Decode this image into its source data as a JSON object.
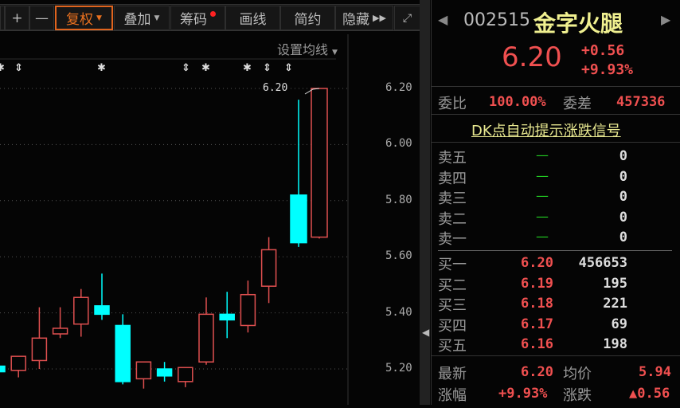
{
  "toolbar": {
    "plus": "+",
    "minus": "—",
    "fuquan": "复权",
    "diejia": "叠加",
    "chouma": "筹码",
    "huaxian": "画线",
    "jianyue": "简约",
    "yincang": "隐藏",
    "expand_icon": "fullscreen-icon"
  },
  "chart": {
    "ma_settings": "设置均线",
    "last_price_label": "6.20",
    "accent_up": "#e05050",
    "accent_down": "#00ffff",
    "markers": [
      "asterisk",
      "updown",
      "asterisk",
      "updown",
      "asterisk",
      "asterisk",
      "updown",
      "updown"
    ],
    "y_ticks": [
      "6.20",
      "6.00",
      "5.80",
      "5.60",
      "5.40",
      "5.20"
    ]
  },
  "chart_data": {
    "type": "candlestick",
    "ylim": [
      5.1,
      6.25
    ],
    "y_ticks": [
      6.2,
      6.0,
      5.8,
      5.6,
      5.4,
      5.2
    ],
    "grid": true,
    "candles": [
      {
        "o": 5.21,
        "c": 5.19,
        "h": 5.21,
        "l": 5.19
      },
      {
        "o": 5.195,
        "c": 5.245,
        "h": 5.245,
        "l": 5.17
      },
      {
        "o": 5.23,
        "c": 5.31,
        "h": 5.42,
        "l": 5.2
      },
      {
        "o": 5.325,
        "c": 5.345,
        "h": 5.42,
        "l": 5.31
      },
      {
        "o": 5.36,
        "c": 5.455,
        "h": 5.485,
        "l": 5.315
      },
      {
        "o": 5.425,
        "c": 5.395,
        "h": 5.54,
        "l": 5.375
      },
      {
        "o": 5.355,
        "c": 5.155,
        "h": 5.395,
        "l": 5.145
      },
      {
        "o": 5.165,
        "c": 5.225,
        "h": 5.225,
        "l": 5.13
      },
      {
        "o": 5.2,
        "c": 5.175,
        "h": 5.225,
        "l": 5.155
      },
      {
        "o": 5.155,
        "c": 5.205,
        "h": 5.205,
        "l": 5.135
      },
      {
        "o": 5.225,
        "c": 5.395,
        "h": 5.455,
        "l": 5.215
      },
      {
        "o": 5.395,
        "c": 5.375,
        "h": 5.475,
        "l": 5.31
      },
      {
        "o": 5.355,
        "c": 5.465,
        "h": 5.515,
        "l": 5.33
      },
      {
        "o": 5.495,
        "c": 5.625,
        "h": 5.67,
        "l": 5.435
      },
      {
        "o": 5.82,
        "c": 5.65,
        "h": 6.16,
        "l": 5.635
      },
      {
        "o": 5.67,
        "c": 6.2,
        "h": 6.2,
        "l": 5.665
      }
    ]
  },
  "quote": {
    "code": "002515",
    "name": "金字火腿",
    "price": "6.20",
    "change": "+0.56",
    "change_pct": "+9.93%",
    "weibi_label": "委比",
    "weibi": "100.00%",
    "weicha_label": "委差",
    "weicha": "457336",
    "dk_link": "DK点自动提示涨跌信号",
    "sells": [
      {
        "label": "卖五",
        "price": "—",
        "vol": "0"
      },
      {
        "label": "卖四",
        "price": "—",
        "vol": "0"
      },
      {
        "label": "卖三",
        "price": "—",
        "vol": "0"
      },
      {
        "label": "卖二",
        "price": "—",
        "vol": "0"
      },
      {
        "label": "卖一",
        "price": "—",
        "vol": "0"
      }
    ],
    "buys": [
      {
        "label": "买一",
        "price": "6.20",
        "vol": "456653"
      },
      {
        "label": "买二",
        "price": "6.19",
        "vol": "195"
      },
      {
        "label": "买三",
        "price": "6.18",
        "vol": "221"
      },
      {
        "label": "买四",
        "price": "6.17",
        "vol": "69"
      },
      {
        "label": "买五",
        "price": "6.16",
        "vol": "198"
      }
    ],
    "latest_label": "最新",
    "latest": "6.20",
    "avg_label": "均价",
    "avg": "5.94",
    "pct_label": "涨幅",
    "pct": "+9.93%",
    "chg_label": "涨跌",
    "chg": "▲0.56"
  }
}
